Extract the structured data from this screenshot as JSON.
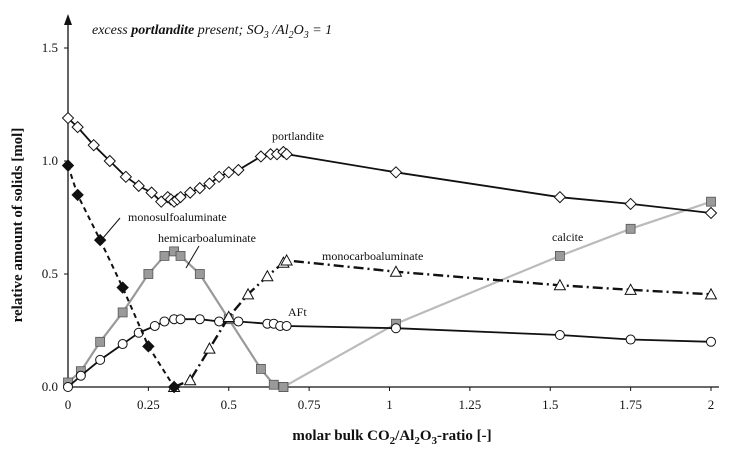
{
  "chart_data": {
    "type": "line",
    "note": {
      "prefix": "excess ",
      "bold": "portlandite",
      "middle": " present; SO",
      "sub1": "3",
      "slash": " /Al",
      "sub2": "2",
      "o": "O",
      "sub3": "3",
      "suffix": " = 1"
    },
    "xlabel": {
      "main": "molar bulk CO",
      "sub1": "2",
      "mid": "/Al",
      "sub2": "2",
      "o": "O",
      "sub3": "3",
      "end": "-ratio [-]"
    },
    "ylabel": "relative amount of solids [mol]",
    "xlim": [
      0,
      2.0
    ],
    "ylim": [
      0,
      1.65
    ],
    "xticks": [
      "0",
      "0.25",
      "0.5",
      "0.75",
      "1",
      "1.25",
      "1.5",
      "1.75",
      "2"
    ],
    "xtick_values": [
      0,
      0.25,
      0.5,
      0.75,
      1,
      1.25,
      1.5,
      1.75,
      2
    ],
    "yticks": [
      "0.0",
      "0.5",
      "1.0",
      "1.5"
    ],
    "ytick_values": [
      0,
      0.5,
      1.0,
      1.5
    ],
    "grid": false,
    "series": [
      {
        "name": "portlandite",
        "color": "#111111",
        "dash": "solid",
        "marker": "diamond-open",
        "x": [
          0,
          0.03,
          0.08,
          0.13,
          0.18,
          0.22,
          0.26,
          0.29,
          0.31,
          0.32,
          0.33,
          0.34,
          0.35,
          0.38,
          0.41,
          0.44,
          0.47,
          0.5,
          0.53,
          0.6,
          0.63,
          0.65,
          0.67,
          0.68,
          1.02,
          1.53,
          1.75,
          2.0
        ],
        "y": [
          1.19,
          1.15,
          1.07,
          1.0,
          0.93,
          0.89,
          0.86,
          0.82,
          0.84,
          0.83,
          0.82,
          0.83,
          0.84,
          0.86,
          0.88,
          0.9,
          0.93,
          0.95,
          0.96,
          1.02,
          1.03,
          1.03,
          1.04,
          1.03,
          0.95,
          0.84,
          0.81,
          0.77
        ]
      },
      {
        "name": "monosulfoaluminate",
        "color": "#111111",
        "dash": "dashed",
        "marker": "diamond-filled",
        "x": [
          0,
          0.03,
          0.1,
          0.17,
          0.25,
          0.33
        ],
        "y": [
          0.98,
          0.85,
          0.65,
          0.44,
          0.18,
          0.0
        ]
      },
      {
        "name": "hemicarboaluminate",
        "color": "#999999",
        "dash": "solid",
        "marker": "square-gray",
        "x": [
          0,
          0.04,
          0.1,
          0.17,
          0.25,
          0.3,
          0.33,
          0.35,
          0.41,
          0.5,
          0.6,
          0.64,
          0.67
        ],
        "y": [
          0.02,
          0.07,
          0.2,
          0.33,
          0.5,
          0.58,
          0.6,
          0.58,
          0.5,
          0.3,
          0.08,
          0.01,
          0.0
        ]
      },
      {
        "name": "monocarboaluminate",
        "color": "#111111",
        "dash": "dashdot",
        "marker": "triangle-open",
        "x": [
          0.33,
          0.38,
          0.44,
          0.5,
          0.56,
          0.62,
          0.67,
          0.68,
          1.02,
          1.53,
          1.75,
          2.0
        ],
        "y": [
          0.0,
          0.03,
          0.17,
          0.31,
          0.41,
          0.49,
          0.55,
          0.56,
          0.51,
          0.45,
          0.43,
          0.41
        ]
      },
      {
        "name": "AFt",
        "color": "#111111",
        "dash": "solid",
        "marker": "circle-open",
        "x": [
          0,
          0.04,
          0.1,
          0.17,
          0.22,
          0.27,
          0.3,
          0.33,
          0.35,
          0.41,
          0.47,
          0.53,
          0.62,
          0.64,
          0.66,
          0.68,
          1.02,
          1.53,
          1.75,
          2.0
        ],
        "y": [
          0.0,
          0.05,
          0.12,
          0.19,
          0.24,
          0.27,
          0.29,
          0.3,
          0.3,
          0.3,
          0.29,
          0.29,
          0.28,
          0.28,
          0.27,
          0.27,
          0.26,
          0.23,
          0.21,
          0.2
        ]
      },
      {
        "name": "calcite",
        "color": "#bbbbbb",
        "dash": "solid",
        "marker": "square-gray",
        "x": [
          0.67,
          1.02,
          1.53,
          1.75,
          2.0
        ],
        "y": [
          0.0,
          0.28,
          0.58,
          0.7,
          0.82
        ]
      }
    ],
    "series_labels": [
      "portlandite",
      "monosulfoaluminate",
      "hemicarboaluminate",
      "monocarboaluminate",
      "AFt",
      "calcite"
    ]
  }
}
